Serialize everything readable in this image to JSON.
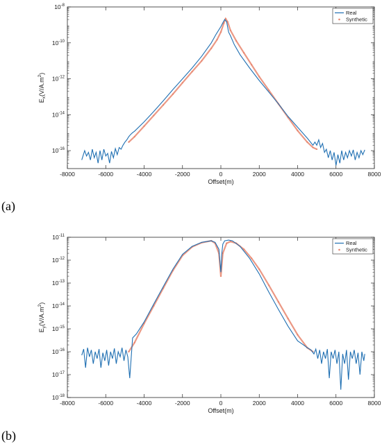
{
  "panels": [
    {
      "label": "(a)"
    },
    {
      "label": "(b)"
    }
  ],
  "chart_data": [
    {
      "type": "line",
      "title": "",
      "xlabel": "Offset(m)",
      "ylabel_main": "E",
      "ylabel_sub": "x",
      "ylabel_tail": "(V/A.m",
      "ylabel_sup": "2",
      "ylabel_end": ")",
      "xlim": [
        -8000,
        8000
      ],
      "ylim": [
        1e-17,
        1e-08
      ],
      "yscale": "log",
      "x_ticks": [
        -8000,
        -6000,
        -4000,
        -2000,
        0,
        2000,
        4000,
        6000,
        8000
      ],
      "x_tick_labels": [
        "-8000",
        "-6000",
        "-4000",
        "-2000",
        "0",
        "2000",
        "4000",
        "6000",
        "8000"
      ],
      "y_ticks_exp": [
        -16,
        -14,
        -12,
        -10,
        -8
      ],
      "y_tick_labels": [
        "-16",
        "-14",
        "-12",
        "-10",
        "-8"
      ],
      "legend_position": "top-right",
      "colors": {
        "Real": "#1f6fb2",
        "Synthetic": "#e8866f"
      },
      "series": [
        {
          "name": "Real",
          "x": [
            -7250,
            -7100,
            -7000,
            -6900,
            -6800,
            -6700,
            -6600,
            -6500,
            -6400,
            -6300,
            -6200,
            -6100,
            -6000,
            -5900,
            -5800,
            -5700,
            -5600,
            -5500,
            -5400,
            -5300,
            -5200,
            -5100,
            -5000,
            -4900,
            -4800,
            -4700,
            -4600,
            -4500,
            -4000,
            -3500,
            -3000,
            -2500,
            -2000,
            -1500,
            -1000,
            -500,
            -250,
            0,
            100,
            200,
            300,
            400,
            500,
            700,
            1000,
            1500,
            2000,
            2500,
            3000,
            3500,
            4000,
            4500,
            4800,
            4900,
            5000,
            5100,
            5200,
            5300,
            5400,
            5500,
            5600,
            5700,
            5800,
            5900,
            6000,
            6100,
            6200,
            6300,
            6400,
            6500,
            6600,
            6700,
            6800,
            6900,
            7000,
            7100,
            7200,
            7300,
            7400,
            7500
          ],
          "y": [
            3e-17,
            1e-16,
            5e-17,
            8e-17,
            3e-17,
            1.2e-16,
            4e-17,
            8e-17,
            2e-17,
            1e-16,
            3e-17,
            1.2e-16,
            5e-17,
            7e-17,
            2e-17,
            9e-17,
            4e-17,
            1.3e-16,
            6e-17,
            1.5e-16,
            1.2e-16,
            2e-16,
            3e-16,
            4e-16,
            6e-16,
            8e-16,
            1e-15,
            1.2e-15,
            4e-15,
            1.5e-14,
            6e-14,
            2.5e-13,
            1e-12,
            4e-12,
            1.8e-11,
            1e-10,
            3e-10,
            8e-10,
            1.3e-09,
            2e-09,
            1.5e-09,
            4e-10,
            2.5e-10,
            8e-11,
            2.2e-11,
            4e-12,
            8e-13,
            1.8e-13,
            4e-14,
            8e-15,
            2e-15,
            5e-16,
            2e-16,
            3e-16,
            2e-16,
            4e-16,
            1.5e-16,
            2.5e-16,
            8e-17,
            1.2e-16,
            4e-17,
            1e-16,
            3e-17,
            8e-17,
            1.5e-17,
            6e-17,
            2e-17,
            1e-16,
            3e-17,
            8e-17,
            4e-17,
            1e-16,
            5e-17,
            1.1e-16,
            3e-17,
            8e-17,
            4e-17,
            1e-16,
            6e-17,
            1.1e-16
          ]
        },
        {
          "name": "Synthetic",
          "x": [
            -4800,
            -4500,
            -4000,
            -3500,
            -3000,
            -2500,
            -2000,
            -1500,
            -1000,
            -500,
            -200,
            0,
            150,
            250,
            350,
            500,
            800,
            1200,
            1600,
            2000,
            2500,
            3000,
            3500,
            4000,
            4500,
            4800,
            5000
          ],
          "y": [
            3e-16,
            6e-16,
            2.3e-15,
            9e-15,
            3.5e-14,
            1.4e-13,
            6e-13,
            2.5e-12,
            1e-11,
            5e-11,
            1.5e-10,
            4e-10,
            1.2e-09,
            2.2e-09,
            1.5e-09,
            5e-10,
            1.3e-10,
            2.8e-11,
            6e-12,
            1.3e-12,
            2.3e-13,
            4e-14,
            7e-15,
            1.3e-15,
            3e-16,
            1.5e-16,
            1.2e-16
          ]
        }
      ]
    },
    {
      "type": "line",
      "title": "",
      "xlabel": "Offset(m)",
      "ylabel_main": "E",
      "ylabel_sub": "y",
      "ylabel_tail": "(V/A.m",
      "ylabel_sup": "2",
      "ylabel_end": ")",
      "xlim": [
        -8000,
        8000
      ],
      "ylim": [
        1e-18,
        1e-11
      ],
      "yscale": "log",
      "x_ticks": [
        -8000,
        -6000,
        -4000,
        -2000,
        0,
        2000,
        4000,
        6000,
        8000
      ],
      "x_tick_labels": [
        "-8000",
        "-6000",
        "-4000",
        "-2000",
        "0",
        "2000",
        "4000",
        "6000",
        "8000"
      ],
      "y_ticks_exp": [
        -18,
        -17,
        -16,
        -15,
        -14,
        -13,
        -12,
        -11
      ],
      "y_tick_labels": [
        "-18",
        "-17",
        "-16",
        "-15",
        "-14",
        "-13",
        "-12",
        "-11"
      ],
      "legend_position": "top-right",
      "colors": {
        "Real": "#1f6fb2",
        "Synthetic": "#e8866f"
      },
      "series": [
        {
          "name": "Real",
          "x": [
            -7250,
            -7150,
            -7050,
            -6950,
            -6850,
            -6750,
            -6650,
            -6550,
            -6450,
            -6350,
            -6250,
            -6150,
            -6050,
            -5950,
            -5850,
            -5750,
            -5650,
            -5550,
            -5450,
            -5350,
            -5250,
            -5150,
            -5050,
            -4950,
            -4850,
            -4750,
            -4600,
            -4400,
            -4000,
            -3500,
            -3000,
            -2500,
            -2000,
            -1500,
            -1000,
            -500,
            -300,
            -100,
            0,
            50,
            100,
            200,
            400,
            600,
            1000,
            1500,
            2000,
            2500,
            3000,
            3500,
            4000,
            4300,
            4500,
            4700,
            4850,
            4950,
            5050,
            5150,
            5250,
            5350,
            5450,
            5550,
            5650,
            5750,
            5850,
            5950,
            6050,
            6150,
            6250,
            6350,
            6450,
            6550,
            6650,
            6750,
            6850,
            6950,
            7050,
            7150,
            7250,
            7350,
            7450,
            7500
          ],
          "y": [
            7e-17,
            1.3e-16,
            2e-17,
            1.5e-16,
            6e-17,
            1.2e-16,
            3e-17,
            1e-16,
            5e-17,
            1.3e-16,
            2e-17,
            9e-17,
            4e-17,
            1.2e-16,
            2.5e-17,
            1e-16,
            5e-17,
            1.4e-16,
            3e-17,
            1e-16,
            6e-17,
            1.5e-16,
            4e-17,
            1.2e-16,
            6e-17,
            7e-18,
            4e-16,
            6e-16,
            2e-15,
            1.2e-14,
            7e-14,
            4e-13,
            1.8e-12,
            4e-12,
            6e-12,
            7e-12,
            6e-12,
            3e-12,
            3e-13,
            2e-12,
            5e-12,
            7e-12,
            7.5e-12,
            7e-12,
            4e-12,
            1.2e-12,
            2.5e-13,
            4e-14,
            7e-15,
            1.3e-15,
            3e-16,
            2e-16,
            1.5e-16,
            1.2e-16,
            8e-17,
            1.3e-16,
            5e-17,
            1.2e-16,
            3e-17,
            1e-16,
            5e-17,
            1.3e-16,
            7e-18,
            1e-16,
            5e-17,
            1.2e-16,
            3e-17,
            1e-16,
            2.2e-18,
            8e-17,
            3e-17,
            1.2e-16,
            6e-18,
            1e-16,
            5e-17,
            1.2e-16,
            3e-17,
            9e-17,
            1e-17,
            1e-16,
            4e-17,
            8e-17
          ]
        },
        {
          "name": "Synthetic",
          "x": [
            -4800,
            -4500,
            -4000,
            -3500,
            -3000,
            -2500,
            -2000,
            -1500,
            -1000,
            -500,
            -300,
            -100,
            0,
            100,
            300,
            500,
            800,
            1200,
            1600,
            2000,
            2500,
            3000,
            3500,
            4000,
            4500,
            4800
          ],
          "y": [
            1e-16,
            2.5e-16,
            1.7e-15,
            1e-14,
            6e-14,
            3.5e-13,
            1.6e-12,
            3.8e-12,
            5.8e-12,
            7e-12,
            5.5e-12,
            2e-12,
            2e-13,
            2e-12,
            5.5e-12,
            6.5e-12,
            5.5e-12,
            3e-12,
            1.2e-12,
            4e-13,
            8e-14,
            1.5e-14,
            2.8e-15,
            5.5e-16,
            1.5e-16,
            1e-16
          ]
        }
      ]
    }
  ]
}
